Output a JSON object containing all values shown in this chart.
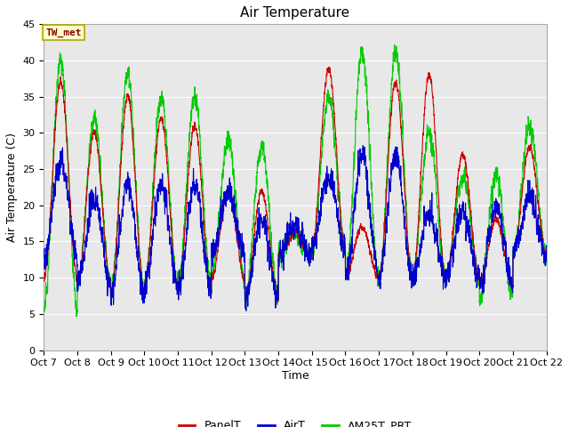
{
  "title": "Air Temperature",
  "xlabel": "Time",
  "ylabel": "Air Temperature (C)",
  "ylim": [
    0,
    45
  ],
  "yticks": [
    0,
    5,
    10,
    15,
    20,
    25,
    30,
    35,
    40,
    45
  ],
  "xlim_days": [
    7,
    22
  ],
  "xtick_labels": [
    "Oct 7",
    "Oct 8",
    "Oct 9",
    "Oct 10",
    "Oct 11",
    "Oct 12",
    "Oct 13",
    "Oct 14",
    "Oct 15",
    "Oct 16",
    "Oct 17",
    "Oct 18",
    "Oct 19",
    "Oct 20",
    "Oct 21",
    "Oct 22"
  ],
  "label_box_text": "TW_met",
  "label_box_facecolor": "#ffffcc",
  "label_box_edgecolor": "#aaa800",
  "label_box_textcolor": "#880000",
  "panel_color": "#cc0000",
  "air_color": "#0000cc",
  "am25_color": "#00cc00",
  "legend_labels": [
    "PanelT",
    "AirT",
    "AM25T_PRT"
  ],
  "fig_bg_color": "#ffffff",
  "plot_bg_color": "#e8e8e8",
  "title_fontsize": 11,
  "axis_label_fontsize": 9,
  "tick_fontsize": 8
}
